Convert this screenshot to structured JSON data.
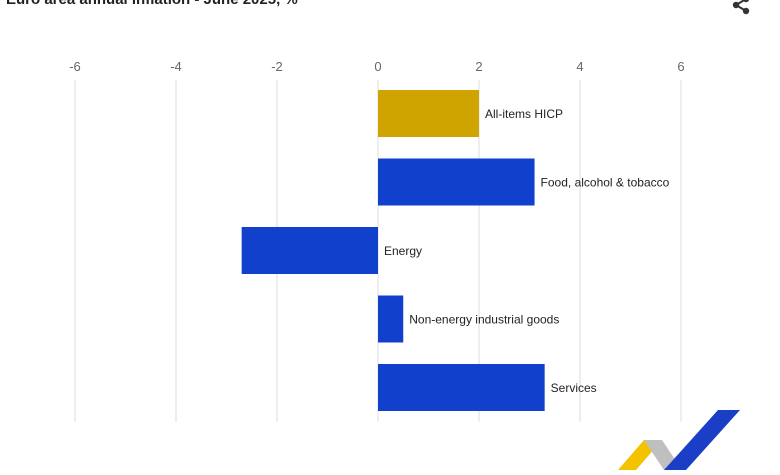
{
  "title": "Euro area annual inflation - June 2025, %",
  "icons": {
    "share": "share-icon",
    "logo": "chevron-logo"
  },
  "colors": {
    "highlight": "#cfa400",
    "bar": "#1040cc",
    "grid": "#dddddd",
    "tick_text": "#666666",
    "label_text": "#222222",
    "logo_yellow": "#f3c300",
    "logo_blue": "#1a3fc6",
    "logo_grey": "#bfbfbf"
  },
  "chart_data": {
    "type": "bar",
    "orientation": "horizontal",
    "title": "Euro area annual inflation - June 2025, %",
    "categories": [
      "All-items HICP",
      "Food, alcohol & tobacco",
      "Energy",
      "Non-energy industrial goods",
      "Services"
    ],
    "values": [
      2.0,
      3.1,
      -2.7,
      0.5,
      3.3
    ],
    "bar_colors": [
      "#cfa400",
      "#1040cc",
      "#1040cc",
      "#1040cc",
      "#1040cc"
    ],
    "xlim": [
      -6,
      6
    ],
    "x_ticks": [
      -6,
      -4,
      -2,
      0,
      2,
      4,
      6
    ],
    "x_tick_labels": [
      "-6",
      "-4",
      "-2",
      "0",
      "2",
      "4",
      "6"
    ],
    "xlabel": "",
    "ylabel": "",
    "grid": true,
    "legend": "none"
  }
}
